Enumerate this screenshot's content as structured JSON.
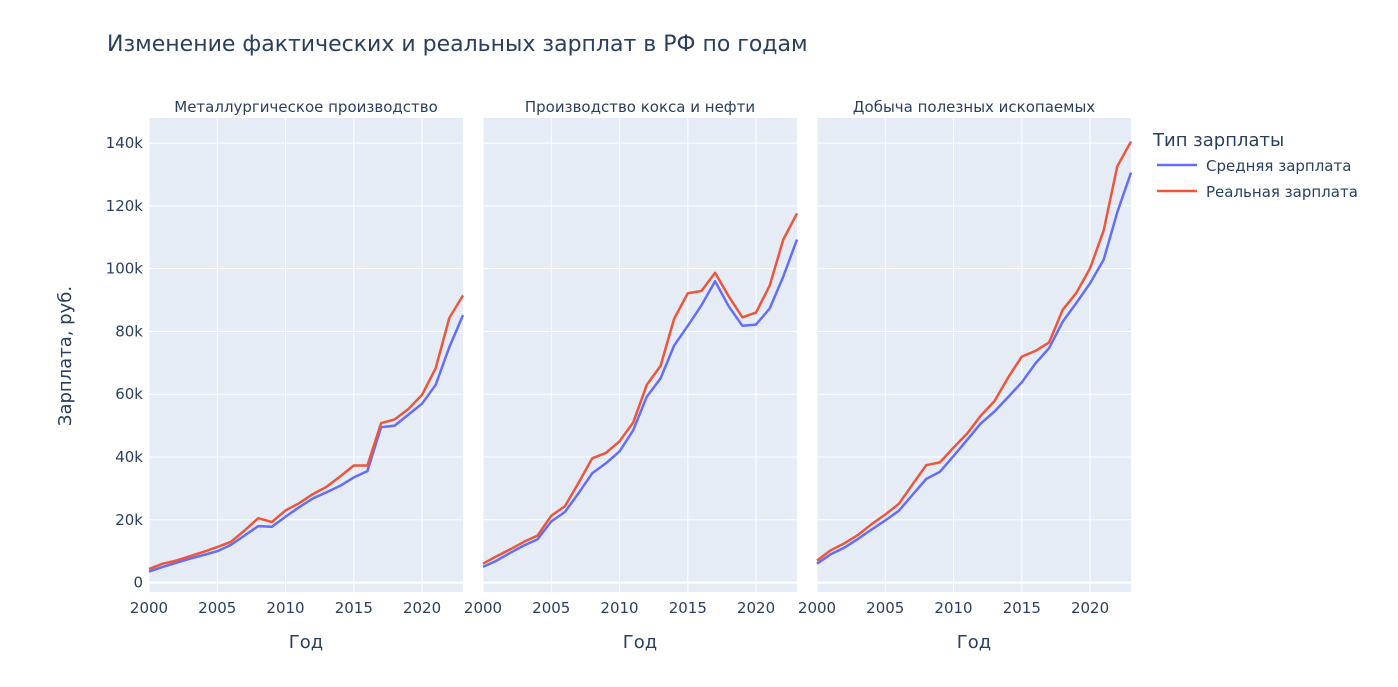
{
  "chart_data": {
    "type": "line",
    "title": "Изменение фактических и реальных зарплат в РФ по годам",
    "xlabel": "Год",
    "ylabel": "Зарплата, руб.",
    "xlim": [
      2000,
      2023
    ],
    "ylim": [
      -3000,
      148000
    ],
    "xticks": [
      2000,
      2005,
      2010,
      2015,
      2020
    ],
    "xtick_labels": [
      "2000",
      "2005",
      "2010",
      "2015",
      "2020"
    ],
    "yticks": [
      0,
      20000,
      40000,
      60000,
      80000,
      100000,
      120000,
      140000
    ],
    "ytick_labels": [
      "0",
      "20k",
      "40k",
      "60k",
      "80k",
      "100k",
      "120k",
      "140k"
    ],
    "legend": {
      "title": "Тип зарплаты",
      "position": "top-right",
      "entries": [
        {
          "name": "Средняя зарплата",
          "color": "#636efa"
        },
        {
          "name": "Реальная зарплата",
          "color": "#ef553b"
        }
      ]
    },
    "x": [
      2000,
      2001,
      2002,
      2003,
      2004,
      2005,
      2006,
      2007,
      2008,
      2009,
      2010,
      2011,
      2012,
      2013,
      2014,
      2015,
      2016,
      2017,
      2018,
      2019,
      2020,
      2021,
      2022,
      2023
    ],
    "panels": [
      {
        "title": "Металлургическое производство",
        "series": [
          {
            "name": "Средняя зарплата",
            "color": "#636efa",
            "values": [
              3500,
              5000,
              6300,
              7600,
              8800,
              10000,
              12000,
              15000,
              18000,
              17800,
              21000,
              24000,
              26800,
              28800,
              30800,
              33500,
              35500,
              49500,
              50000,
              53500,
              57000,
              63000,
              75000,
              85200
            ]
          },
          {
            "name": "Реальная зарплата",
            "color": "#ef553b",
            "values": [
              4300,
              6000,
              7000,
              8400,
              9800,
              11300,
              13000,
              16600,
              20500,
              19300,
              23000,
              25300,
              28200,
              30500,
              33800,
              37300,
              37300,
              50800,
              52000,
              55300,
              59800,
              68300,
              84300,
              91500
            ]
          }
        ]
      },
      {
        "title": "Производство кокса и нефти",
        "series": [
          {
            "name": "Средняя зарплата",
            "color": "#636efa",
            "values": [
              5000,
              7000,
              9500,
              11800,
              13800,
              19500,
              22500,
              28500,
              34800,
              38000,
              41800,
              48500,
              59200,
              65000,
              75500,
              81800,
              88300,
              96000,
              88000,
              81800,
              82200,
              87300,
              97500,
              109300
            ]
          },
          {
            "name": "Реальная зарплата",
            "color": "#ef553b",
            "values": [
              6000,
              8400,
              10600,
              13000,
              15000,
              21300,
              24300,
              31800,
              39600,
              41300,
              45000,
              51000,
              63000,
              69000,
              84000,
              92200,
              92900,
              98700,
              91200,
              84500,
              86000,
              94600,
              109300,
              117600
            ]
          }
        ]
      },
      {
        "title": "Добыча полезных ископаемых",
        "series": [
          {
            "name": "Средняя зарплата",
            "color": "#636efa",
            "values": [
              6000,
              9000,
              11100,
              13900,
              16900,
              19800,
              22900,
              28000,
              33000,
              35300,
              40300,
              45500,
              50700,
              54500,
              59100,
              63800,
              69800,
              74700,
              83100,
              89100,
              95300,
              102900,
              118000,
              130600
            ]
          },
          {
            "name": "Реальная зарплата",
            "color": "#ef553b",
            "values": [
              7000,
              10300,
              12500,
              15200,
              18600,
              21700,
              25100,
              31300,
              37400,
              38300,
              43000,
              47500,
              53200,
              57800,
              65300,
              72000,
              73800,
              76500,
              86900,
              92300,
              100100,
              112200,
              132600,
              140500
            ]
          }
        ]
      }
    ]
  }
}
